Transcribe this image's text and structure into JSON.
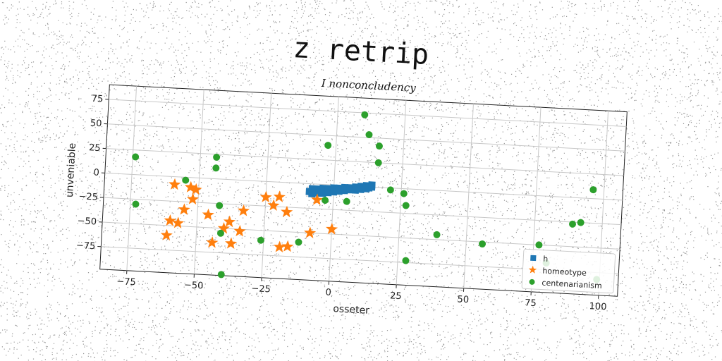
{
  "figure": {
    "suptitle": "z retrip",
    "subtitle": "I nonconcludency"
  },
  "chart_data": {
    "type": "scatter",
    "title": "I nonconcludency",
    "xlabel": "osseter",
    "ylabel": "unveniable",
    "xlim": [
      -85,
      107
    ],
    "ylim": [
      -98,
      90
    ],
    "xticks": [
      -75,
      -50,
      -25,
      0,
      25,
      50,
      75,
      100
    ],
    "yticks": [
      75,
      50,
      25,
      0,
      -25,
      -50,
      -75
    ],
    "grid": true,
    "legend_position": "lower-right",
    "series": [
      {
        "name": "h",
        "marker": "square",
        "color": "#1f77b4",
        "points": [
          [
            -9,
            -8
          ],
          [
            -8,
            -5
          ],
          [
            -7,
            -8
          ],
          [
            -6,
            -5
          ],
          [
            -5,
            -7
          ],
          [
            -4,
            -4
          ],
          [
            -3,
            -6
          ],
          [
            -2,
            -4
          ],
          [
            -1,
            -6
          ],
          [
            0,
            -3
          ],
          [
            1,
            -5
          ],
          [
            2,
            -3
          ],
          [
            3,
            -5
          ],
          [
            4,
            -2
          ],
          [
            5,
            -4
          ],
          [
            6,
            -2
          ],
          [
            7,
            -3
          ],
          [
            8,
            -1
          ],
          [
            9,
            -3
          ],
          [
            10,
            0
          ],
          [
            11,
            -2
          ],
          [
            12,
            1
          ],
          [
            13,
            -1
          ],
          [
            14,
            2
          ],
          [
            -8,
            -10
          ],
          [
            -6,
            -9
          ],
          [
            -4,
            -9
          ],
          [
            -2,
            -8
          ],
          [
            0,
            -7
          ],
          [
            2,
            -6
          ],
          [
            4,
            -5
          ],
          [
            6,
            -4
          ],
          [
            8,
            -4
          ],
          [
            10,
            -3
          ],
          [
            12,
            -2
          ],
          [
            14,
            0
          ]
        ]
      },
      {
        "name": "homeotype",
        "marker": "star",
        "color": "#ff7f0e",
        "points": [
          [
            -59,
            -8
          ],
          [
            -53,
            -10
          ],
          [
            -51,
            -12
          ],
          [
            -52,
            -22
          ],
          [
            -55,
            -33
          ],
          [
            -60,
            -45
          ],
          [
            -57,
            -47
          ],
          [
            -61,
            -60
          ],
          [
            -46,
            -37
          ],
          [
            -44,
            -65
          ],
          [
            -40,
            -50
          ],
          [
            -38,
            -43
          ],
          [
            -37,
            -65
          ],
          [
            -34,
            -52
          ],
          [
            -33,
            -31
          ],
          [
            -25,
            -16
          ],
          [
            -22,
            -24
          ],
          [
            -20,
            -15
          ],
          [
            -17,
            -30
          ],
          [
            -19,
            -66
          ],
          [
            -16,
            -65
          ],
          [
            -8,
            -50
          ],
          [
            -6,
            -16
          ],
          [
            0,
            -45
          ]
        ]
      },
      {
        "name": "centenarianism",
        "marker": "circle",
        "color": "#2ca02c",
        "points": [
          [
            -74,
            18
          ],
          [
            -73,
            -30
          ],
          [
            -55,
            -3
          ],
          [
            -44,
            22
          ],
          [
            -44,
            11
          ],
          [
            -42,
            -27
          ],
          [
            -41,
            -55
          ],
          [
            -40,
            -97
          ],
          [
            -26,
            -60
          ],
          [
            -12,
            -60
          ],
          [
            -3,
            40
          ],
          [
            -3,
            -16
          ],
          [
            5,
            -16
          ],
          [
            10,
            73
          ],
          [
            12,
            53
          ],
          [
            16,
            42
          ],
          [
            16,
            25
          ],
          [
            21,
            -2
          ],
          [
            26,
            -5
          ],
          [
            27,
            -17
          ],
          [
            28,
            -73
          ],
          [
            39,
            -45
          ],
          [
            56,
            -52
          ],
          [
            77,
            -50
          ],
          [
            80,
            -68
          ],
          [
            89,
            -27
          ],
          [
            92,
            -25
          ],
          [
            96,
            9
          ],
          [
            99,
            -82
          ]
        ]
      }
    ]
  }
}
